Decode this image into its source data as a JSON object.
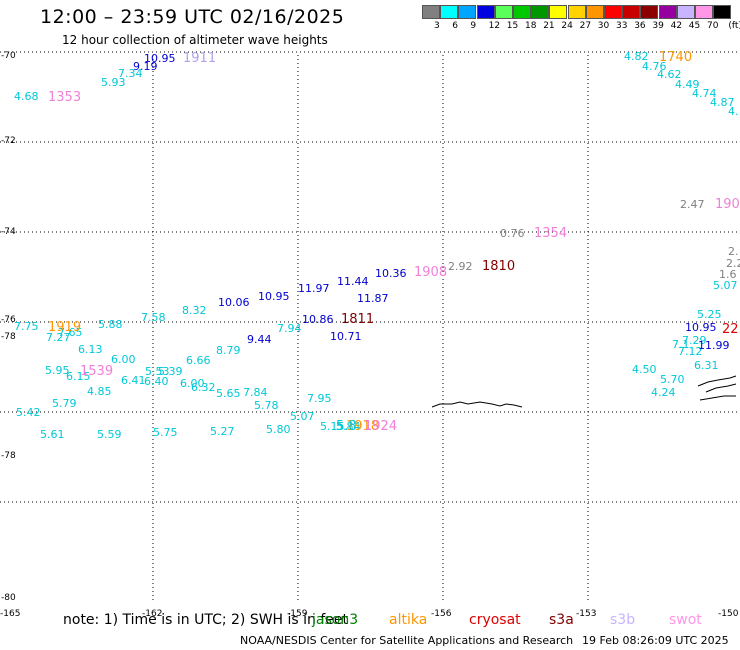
{
  "header": {
    "title": "12:00 – 23:59 UTC 02/16/2025",
    "subtitle": "12 hour collection of altimeter wave heights"
  },
  "colorbar": {
    "unit": "(ft)",
    "steps": [
      {
        "label": "3",
        "color": "#808080"
      },
      {
        "label": "6",
        "color": "#00ffff"
      },
      {
        "label": "9",
        "color": "#00a5ff"
      },
      {
        "label": "12",
        "color": "#0000e0"
      },
      {
        "label": "15",
        "color": "#5aff5a"
      },
      {
        "label": "18",
        "color": "#00c800"
      },
      {
        "label": "21",
        "color": "#009600"
      },
      {
        "label": "24",
        "color": "#ffff00"
      },
      {
        "label": "27",
        "color": "#ffd200"
      },
      {
        "label": "30",
        "color": "#ff9600"
      },
      {
        "label": "33",
        "color": "#ff0000"
      },
      {
        "label": "36",
        "color": "#c80000"
      },
      {
        "label": "39",
        "color": "#8c0000"
      },
      {
        "label": "42",
        "color": "#9600a0"
      },
      {
        "label": "45",
        "color": "#c8b4ff"
      },
      {
        "label": "70",
        "color": "#ff96e6"
      },
      {
        "label": "",
        "color": "#000000"
      }
    ]
  },
  "axes": {
    "lat_labels": [
      "-70",
      "-72",
      "-74",
      "-76",
      "-78",
      "-78",
      "-80"
    ],
    "lon_labels": [
      "-165",
      "-162",
      "-159",
      "-156",
      "-153",
      "-150"
    ]
  },
  "observations": [
    {
      "t": "10.95",
      "c": "#0000d0"
    },
    {
      "t": "9.19",
      "c": "#0000d0"
    },
    {
      "t": "7.34",
      "c": "#00c8d8"
    },
    {
      "t": "5.93",
      "c": "#00c8d8"
    },
    {
      "t": "4.68",
      "c": "#00c8d8"
    },
    {
      "t": "4.82",
      "c": "#00c8d8"
    },
    {
      "t": "4.76",
      "c": "#00c8d8"
    },
    {
      "t": "4.62",
      "c": "#00c8d8"
    },
    {
      "t": "4.49",
      "c": "#00c8d8"
    },
    {
      "t": "4.74",
      "c": "#00c8d8"
    },
    {
      "t": "4.87",
      "c": "#00c8d8"
    },
    {
      "t": "4.",
      "c": "#00c8d8"
    },
    {
      "t": "2.47",
      "c": "#808080"
    },
    {
      "t": "0.76",
      "c": "#808080"
    },
    {
      "t": "2.92",
      "c": "#808080"
    },
    {
      "t": "2.",
      "c": "#808080"
    },
    {
      "t": "2.2",
      "c": "#808080"
    },
    {
      "t": "1.6",
      "c": "#808080"
    },
    {
      "t": "5.07",
      "c": "#00c8d8"
    },
    {
      "t": "5.25",
      "c": "#00c8d8"
    },
    {
      "t": "10.95",
      "c": "#0000d0"
    },
    {
      "t": "7.29",
      "c": "#00c8d8"
    },
    {
      "t": "7.12",
      "c": "#00c8d8"
    },
    {
      "t": "7.1",
      "c": "#00c8d8"
    },
    {
      "t": "11.99",
      "c": "#0000d0"
    },
    {
      "t": "6.31",
      "c": "#00c8d8"
    },
    {
      "t": "4.50",
      "c": "#00c8d8"
    },
    {
      "t": "5.70",
      "c": "#00c8d8"
    },
    {
      "t": "4.24",
      "c": "#00c8d8"
    },
    {
      "t": "10.36",
      "c": "#0000d0"
    },
    {
      "t": "11.44",
      "c": "#0000d0"
    },
    {
      "t": "11.87",
      "c": "#0000d0"
    },
    {
      "t": "11.97",
      "c": "#0000d0"
    },
    {
      "t": "10.71",
      "c": "#0000d0"
    },
    {
      "t": "10.86",
      "c": "#0000d0"
    },
    {
      "t": "10.95",
      "c": "#0000d0"
    },
    {
      "t": "10.06",
      "c": "#0000d0"
    },
    {
      "t": "9.44",
      "c": "#0000d0"
    },
    {
      "t": "7.94",
      "c": "#00c8d8"
    },
    {
      "t": "8.32",
      "c": "#00c8d8"
    },
    {
      "t": "7.58",
      "c": "#00c8d8"
    },
    {
      "t": "8.79",
      "c": "#00c8d8"
    },
    {
      "t": "6.66",
      "c": "#00c8d8"
    },
    {
      "t": "5.88",
      "c": "#00c8d8"
    },
    {
      "t": "7.75",
      "c": "#00c8d8"
    },
    {
      "t": "7.27",
      "c": "#00c8d8"
    },
    {
      "t": "7.65",
      "c": "#00c8d8"
    },
    {
      "t": "6.13",
      "c": "#00c8d8"
    },
    {
      "t": "6.00",
      "c": "#00c8d8"
    },
    {
      "t": "5.95",
      "c": "#00c8d8"
    },
    {
      "t": "6.15",
      "c": "#00c8d8"
    },
    {
      "t": "6.41",
      "c": "#00c8d8"
    },
    {
      "t": "6.40",
      "c": "#00c8d8"
    },
    {
      "t": "5.53",
      "c": "#00c8d8"
    },
    {
      "t": "5.39",
      "c": "#00c8d8"
    },
    {
      "t": "6.00",
      "c": "#00c8d8"
    },
    {
      "t": "6.32",
      "c": "#00c8d8"
    },
    {
      "t": "5.65",
      "c": "#00c8d8"
    },
    {
      "t": "7.84",
      "c": "#00c8d8"
    },
    {
      "t": "5.78",
      "c": "#00c8d8"
    },
    {
      "t": "4.85",
      "c": "#00c8d8"
    },
    {
      "t": "5.79",
      "c": "#00c8d8"
    },
    {
      "t": "5.42",
      "c": "#00c8d8"
    },
    {
      "t": "5.61",
      "c": "#00c8d8"
    },
    {
      "t": "5.59",
      "c": "#00c8d8"
    },
    {
      "t": "5.75",
      "c": "#00c8d8"
    },
    {
      "t": "5.27",
      "c": "#00c8d8"
    },
    {
      "t": "5.80",
      "c": "#00c8d8"
    },
    {
      "t": "5.07",
      "c": "#00c8d8"
    },
    {
      "t": "7.95",
      "c": "#00c8d8"
    },
    {
      "t": "5.15",
      "c": "#00c8d8"
    },
    {
      "t": "5.84",
      "c": "#00c8d8"
    }
  ],
  "time_tags": [
    {
      "t": "1911",
      "c": "#b4a0f0"
    },
    {
      "t": "1353",
      "c": "#f080d8"
    },
    {
      "t": "1740",
      "c": "#ff9600"
    },
    {
      "t": "190",
      "c": "#f080d8"
    },
    {
      "t": "1354",
      "c": "#f080d8"
    },
    {
      "t": "1908",
      "c": "#f080d8"
    },
    {
      "t": "1810",
      "c": "#800000"
    },
    {
      "t": "1811",
      "c": "#800000"
    },
    {
      "t": "22",
      "c": "#e00000"
    },
    {
      "t": "1919",
      "c": "#ff9600"
    },
    {
      "t": "1539",
      "c": "#f080d8"
    },
    {
      "t": "1918",
      "c": "#ff9600"
    },
    {
      "t": "1924",
      "c": "#f080d8"
    },
    {
      "t": "5.8",
      "c": "#00c8d8"
    }
  ],
  "note": "note: 1) Time is in UTC; 2) SWH is in feet",
  "satellites": [
    {
      "name": "jason3",
      "color": "#008000"
    },
    {
      "name": "altika",
      "color": "#ff9600"
    },
    {
      "name": "cryosat",
      "color": "#e00000"
    },
    {
      "name": "s3a",
      "color": "#800000"
    },
    {
      "name": "s3b",
      "color": "#c8b4ff"
    },
    {
      "name": "swot",
      "color": "#ff96e6"
    }
  ],
  "footer": {
    "credit": "NOAA/NESDIS Center for Satellite Applications and Research",
    "generated": "19 Feb 08:26:09 UTC 2025"
  }
}
